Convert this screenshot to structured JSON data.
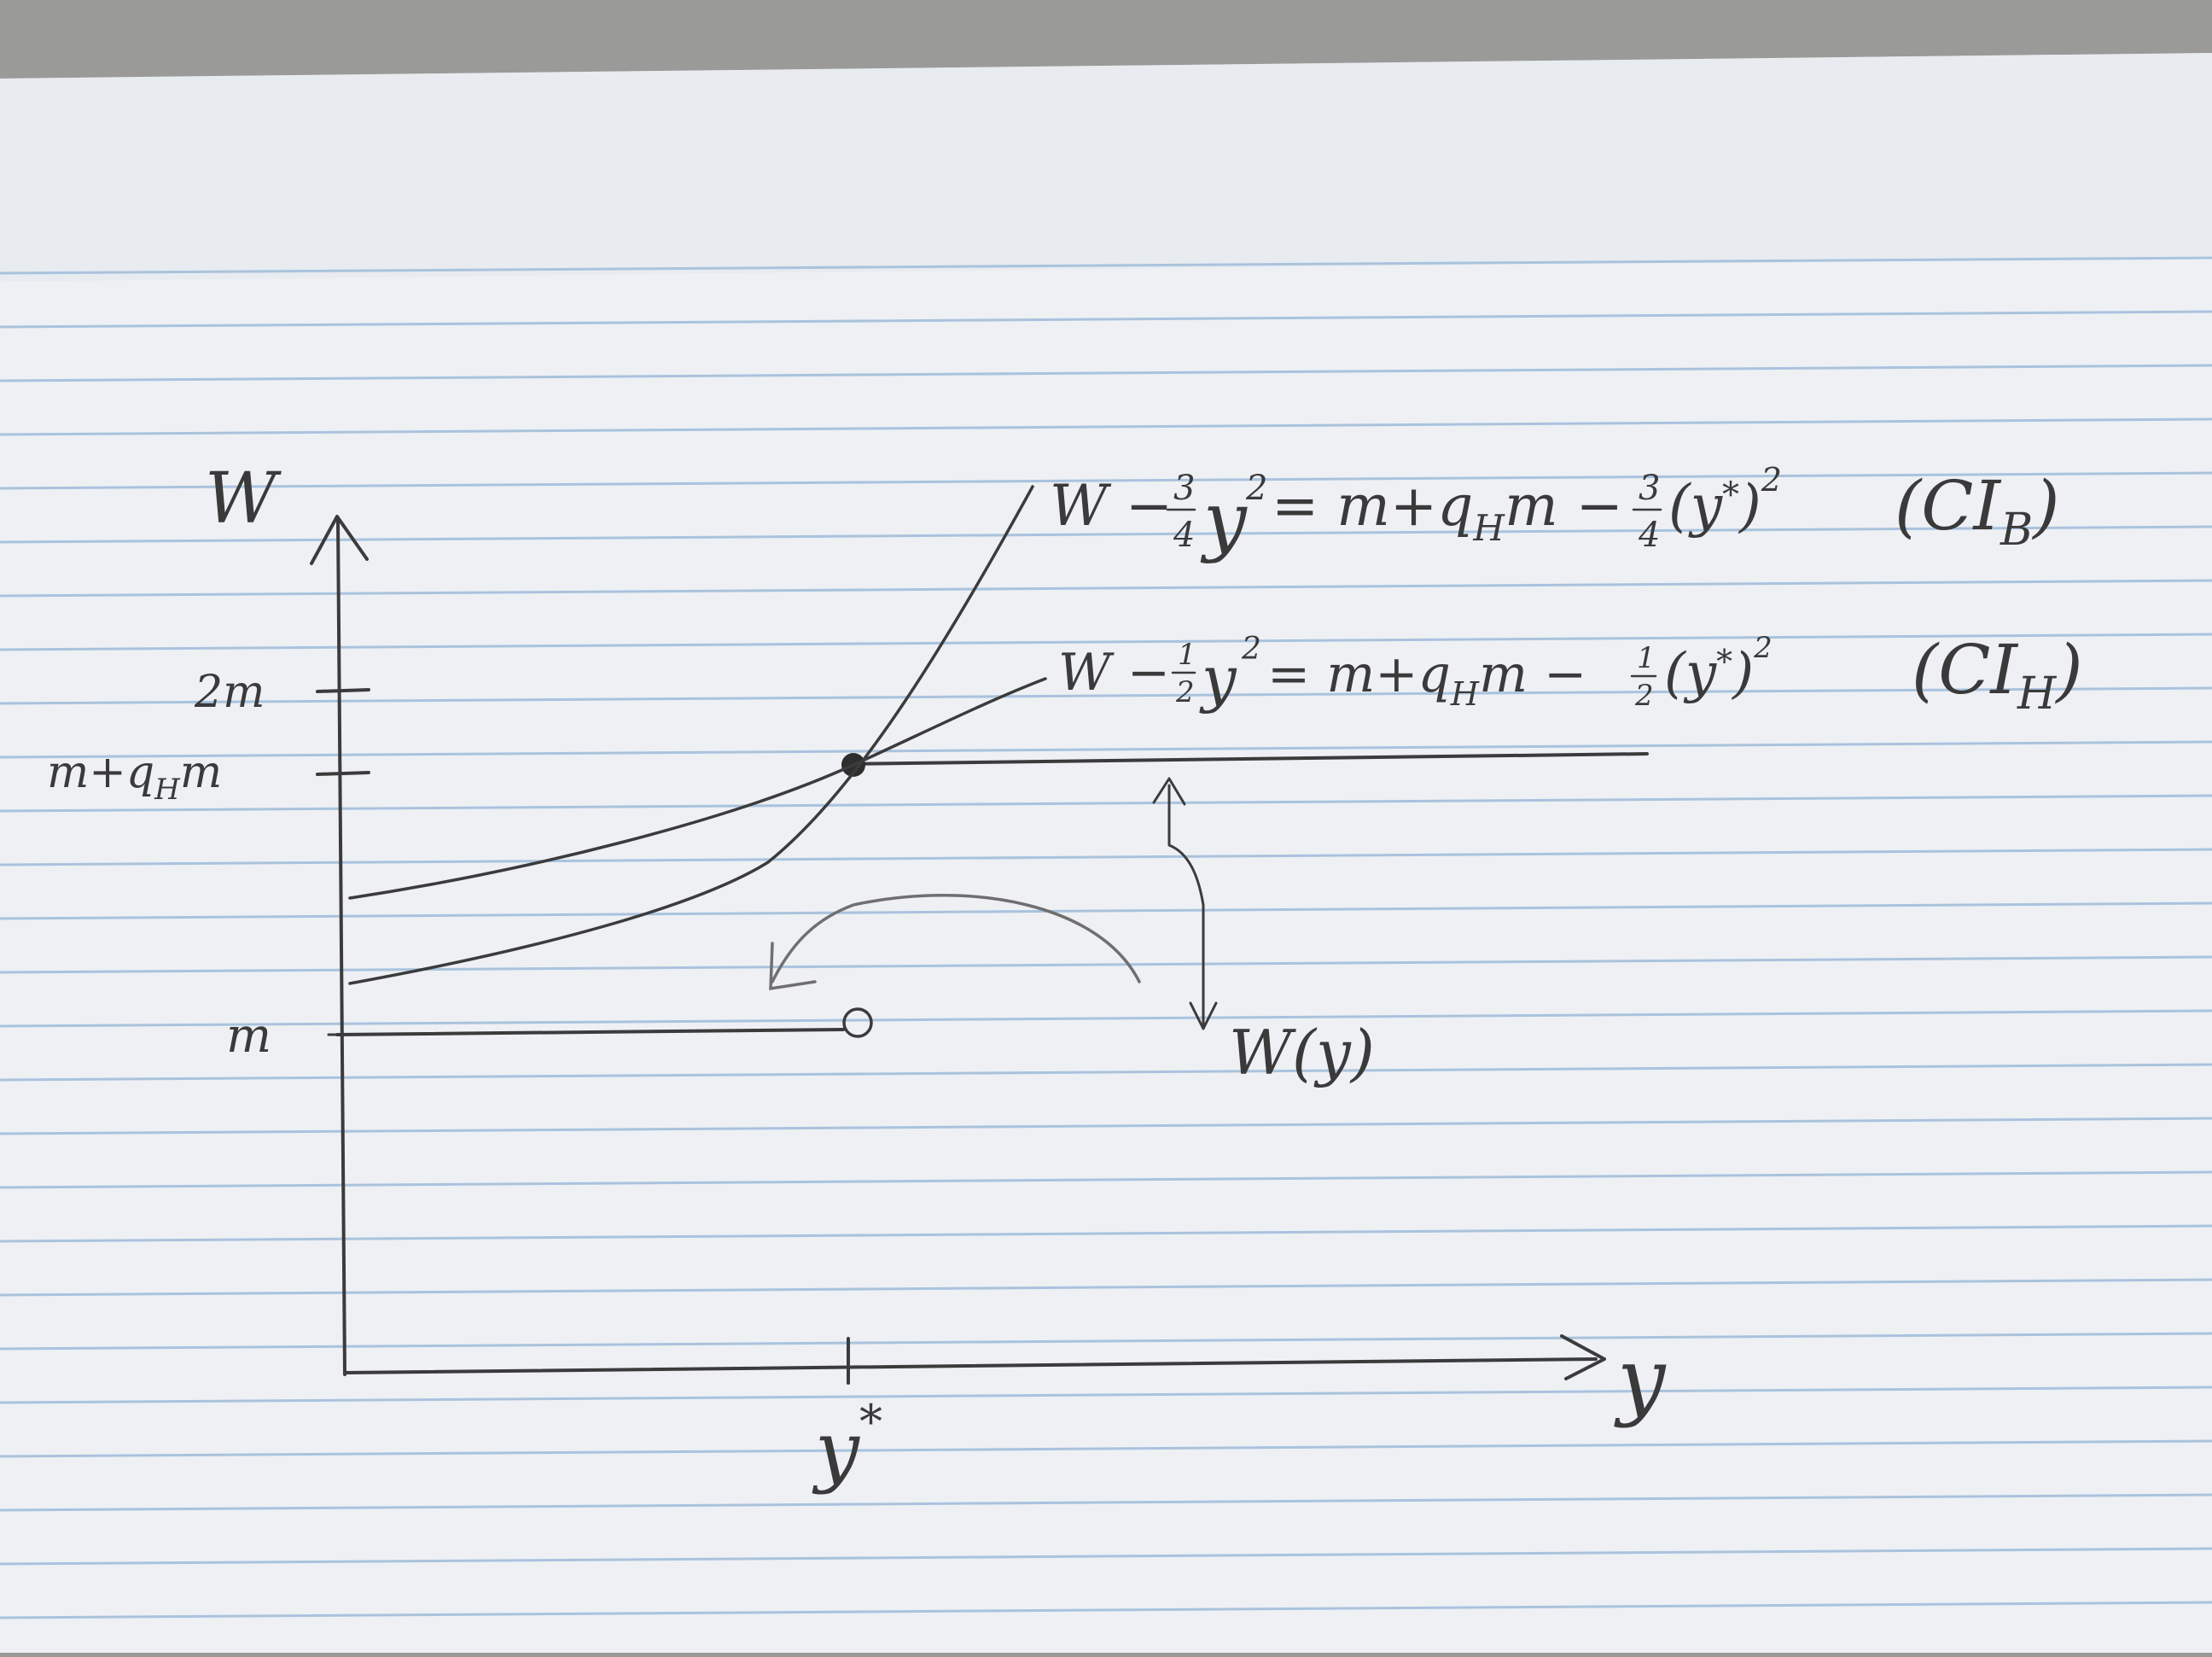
{
  "axes": {
    "y_axis_label": "W",
    "x_axis_label": "y",
    "y_ticks": [
      "2m",
      "m+q",
      "m"
    ],
    "y_tick_subscript": "H",
    "y_tick_suffix": "m",
    "x_tick": "y",
    "x_tick_superscript": "*"
  },
  "curves": {
    "ci_b": {
      "equation_left": "W − ",
      "equation_frac_num": "3",
      "equation_frac_den": "4",
      "equation_mid": "y",
      "equation_exp": "2",
      "equation_right_a": " = m+q",
      "equation_right_sub": "H",
      "equation_right_b": "m − ",
      "equation_right_frac_num": "3",
      "equation_right_frac_den": "4",
      "equation_right_c": "(y",
      "equation_right_star": "*",
      "equation_right_d": ")",
      "equation_right_exp": "2",
      "tag": "(CI",
      "tag_sub": "B",
      "tag_close": ")"
    },
    "ci_h": {
      "equation_left": "W − ",
      "equation_frac_num": "1",
      "equation_frac_den": "2",
      "equation_mid": "y",
      "equation_exp": "2",
      "equation_right_a": " = m+q",
      "equation_right_sub": "H",
      "equation_right_b": "m − ",
      "equation_right_frac_num": "1",
      "equation_right_frac_den": "2",
      "equation_right_c": "(y",
      "equation_right_star": "*",
      "equation_right_d": ")",
      "equation_right_exp": "2",
      "tag": "(CI",
      "tag_sub": "H",
      "tag_close": ")"
    }
  },
  "annotation": {
    "label": "W(y)"
  },
  "colors": {
    "paper": "#eef0f4",
    "rule_line": "#a9c3dd",
    "margin_line": "#d9a3a8",
    "pencil": "#3b3b3b"
  }
}
